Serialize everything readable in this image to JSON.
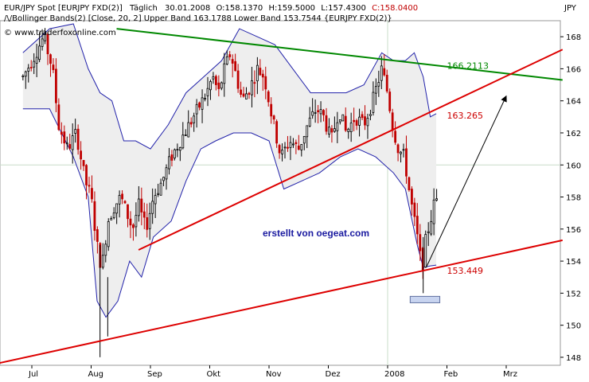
{
  "header": {
    "line1_prefix": "EUR/JPY Spot [EURJPY FXD(2)]",
    "line1_period": "Täglich",
    "line1_date": "30.01.2008",
    "line1_open": "O:158.1370",
    "line1_high": "H:159.5000",
    "line1_low": "L:157.4300",
    "line1_close": "C:158.0400",
    "line2": "Bollinger Bands(2) [Close, 20, 2] Upper Band 163.1788 Lower Band 153.7544 {EURJPY FXD(2)}",
    "line3": "© www.traderfoxonline.com",
    "unit": "JPY"
  },
  "annotations": {
    "level_top": "166.2113",
    "level_mid": "163.265",
    "level_low": "153.449",
    "credit": "erstellt von oegeat.com"
  },
  "colors": {
    "up": "#000000",
    "down": "#c00000",
    "band": "#2222aa",
    "band_fill": "#eeeeee",
    "green_line": "#008800",
    "red_line": "#dd0000",
    "level_green": "#008800",
    "level_red": "#cc0000",
    "grid": "#c8dcc8",
    "marker_box": "#c8d4f0"
  },
  "chart_data": {
    "type": "candlestick",
    "instrument": "EUR/JPY Spot [EURJPY FXD(2)]",
    "period": "Täglich",
    "ylim": [
      147.5,
      169.0
    ],
    "yticks": [
      148,
      150,
      152,
      154,
      156,
      158,
      160,
      162,
      164,
      166,
      168
    ],
    "x_labels": [
      {
        "label": "Jul",
        "month": 0
      },
      {
        "label": "Aug",
        "month": 1
      },
      {
        "label": "Sep",
        "month": 2
      },
      {
        "label": "Okt",
        "month": 3
      },
      {
        "label": "Nov",
        "month": 4
      },
      {
        "label": "Dez",
        "month": 5
      },
      {
        "label": "2008",
        "month": 6
      },
      {
        "label": "Feb",
        "month": 7
      },
      {
        "label": "Mrz",
        "month": 8
      }
    ],
    "close_path": [
      [
        -0.15,
        165.5
      ],
      [
        0.0,
        166.5
      ],
      [
        0.2,
        168.0
      ],
      [
        0.35,
        166.0
      ],
      [
        0.45,
        162.5
      ],
      [
        0.6,
        161.0
      ],
      [
        0.75,
        162.0
      ],
      [
        0.9,
        159.0
      ],
      [
        1.0,
        158.0
      ],
      [
        1.1,
        155.0
      ],
      [
        1.18,
        153.5
      ],
      [
        1.28,
        156.5
      ],
      [
        1.4,
        157.5
      ],
      [
        1.5,
        158.0
      ],
      [
        1.6,
        157.0
      ],
      [
        1.7,
        156.0
      ],
      [
        1.8,
        157.5
      ],
      [
        1.92,
        156.0
      ],
      [
        2.05,
        158.0
      ],
      [
        2.2,
        159.0
      ],
      [
        2.35,
        160.5
      ],
      [
        2.5,
        161.5
      ],
      [
        2.65,
        162.5
      ],
      [
        2.8,
        163.5
      ],
      [
        2.95,
        164.5
      ],
      [
        3.05,
        165.5
      ],
      [
        3.15,
        164.5
      ],
      [
        3.25,
        166.0
      ],
      [
        3.35,
        167.0
      ],
      [
        3.45,
        165.5
      ],
      [
        3.55,
        164.0
      ],
      [
        3.7,
        165.0
      ],
      [
        3.8,
        166.0
      ],
      [
        3.92,
        165.5
      ],
      [
        4.05,
        163.0
      ],
      [
        4.2,
        160.5
      ],
      [
        4.35,
        161.5
      ],
      [
        4.5,
        161.0
      ],
      [
        4.65,
        162.5
      ],
      [
        4.8,
        163.5
      ],
      [
        4.92,
        163.0
      ],
      [
        5.05,
        161.5
      ],
      [
        5.18,
        163.5
      ],
      [
        5.3,
        162.0
      ],
      [
        5.45,
        163.0
      ],
      [
        5.6,
        162.5
      ],
      [
        5.75,
        164.0
      ],
      [
        5.9,
        166.0
      ],
      [
        6.0,
        164.5
      ],
      [
        6.08,
        162.5
      ],
      [
        6.18,
        161.0
      ],
      [
        6.28,
        160.5
      ],
      [
        6.38,
        158.0
      ],
      [
        6.5,
        155.5
      ],
      [
        6.58,
        153.5
      ],
      [
        6.65,
        155.5
      ],
      [
        6.72,
        156.5
      ],
      [
        6.78,
        157.5
      ],
      [
        6.85,
        158.04
      ]
    ],
    "upper_band": [
      [
        -0.15,
        167.0
      ],
      [
        0.3,
        168.5
      ],
      [
        0.7,
        168.8
      ],
      [
        0.95,
        166.0
      ],
      [
        1.15,
        164.5
      ],
      [
        1.35,
        164.0
      ],
      [
        1.55,
        161.5
      ],
      [
        1.75,
        161.5
      ],
      [
        2.0,
        161.0
      ],
      [
        2.3,
        162.5
      ],
      [
        2.6,
        164.5
      ],
      [
        2.9,
        165.5
      ],
      [
        3.2,
        166.5
      ],
      [
        3.5,
        168.5
      ],
      [
        3.8,
        168.0
      ],
      [
        4.1,
        167.5
      ],
      [
        4.4,
        166.0
      ],
      [
        4.7,
        164.5
      ],
      [
        5.0,
        164.5
      ],
      [
        5.3,
        164.5
      ],
      [
        5.6,
        165.0
      ],
      [
        5.9,
        167.0
      ],
      [
        6.1,
        166.5
      ],
      [
        6.3,
        166.5
      ],
      [
        6.45,
        167.0
      ],
      [
        6.6,
        165.5
      ],
      [
        6.72,
        163.0
      ],
      [
        6.82,
        163.2
      ]
    ],
    "lower_band": [
      [
        -0.15,
        163.5
      ],
      [
        0.3,
        163.5
      ],
      [
        0.7,
        160.5
      ],
      [
        0.95,
        158.0
      ],
      [
        1.1,
        151.5
      ],
      [
        1.25,
        150.5
      ],
      [
        1.45,
        151.5
      ],
      [
        1.65,
        154.0
      ],
      [
        1.85,
        153.0
      ],
      [
        2.05,
        155.5
      ],
      [
        2.35,
        156.5
      ],
      [
        2.6,
        159.0
      ],
      [
        2.85,
        161.0
      ],
      [
        3.1,
        161.5
      ],
      [
        3.4,
        162.0
      ],
      [
        3.7,
        162.0
      ],
      [
        4.0,
        161.5
      ],
      [
        4.25,
        158.5
      ],
      [
        4.55,
        159.0
      ],
      [
        4.85,
        159.5
      ],
      [
        5.2,
        160.5
      ],
      [
        5.5,
        161.0
      ],
      [
        5.8,
        160.5
      ],
      [
        6.1,
        159.5
      ],
      [
        6.3,
        158.5
      ],
      [
        6.5,
        155.0
      ],
      [
        6.6,
        153.6
      ],
      [
        6.72,
        153.7
      ],
      [
        6.82,
        153.75
      ]
    ],
    "trendlines": [
      {
        "color": "green",
        "from": [
          1.43,
          168.5
        ],
        "to": [
          8.95,
          165.3
        ]
      },
      {
        "color": "red",
        "from": [
          1.8,
          154.7
        ],
        "to": [
          8.95,
          167.2
        ]
      },
      {
        "color": "red",
        "from": [
          -0.6,
          147.6
        ],
        "to": [
          8.95,
          155.3
        ]
      }
    ],
    "arrows": [
      {
        "from": [
          6.65,
          153.6
        ],
        "to": [
          8.0,
          164.3
        ]
      }
    ],
    "level_labels": [
      {
        "value": "166.2113",
        "at": [
          7.0,
          166.2
        ],
        "color": "green"
      },
      {
        "value": "163.265",
        "at": [
          7.0,
          163.1
        ],
        "color": "red"
      },
      {
        "value": "153.449",
        "at": [
          7.0,
          153.4
        ],
        "color": "red"
      }
    ],
    "marker_box": {
      "x": [
        6.38,
        6.88
      ],
      "y": [
        151.8,
        151.4
      ]
    },
    "vertical_grid_month": 6,
    "horizontal_grid_value": 160,
    "last_close": 158.04
  }
}
